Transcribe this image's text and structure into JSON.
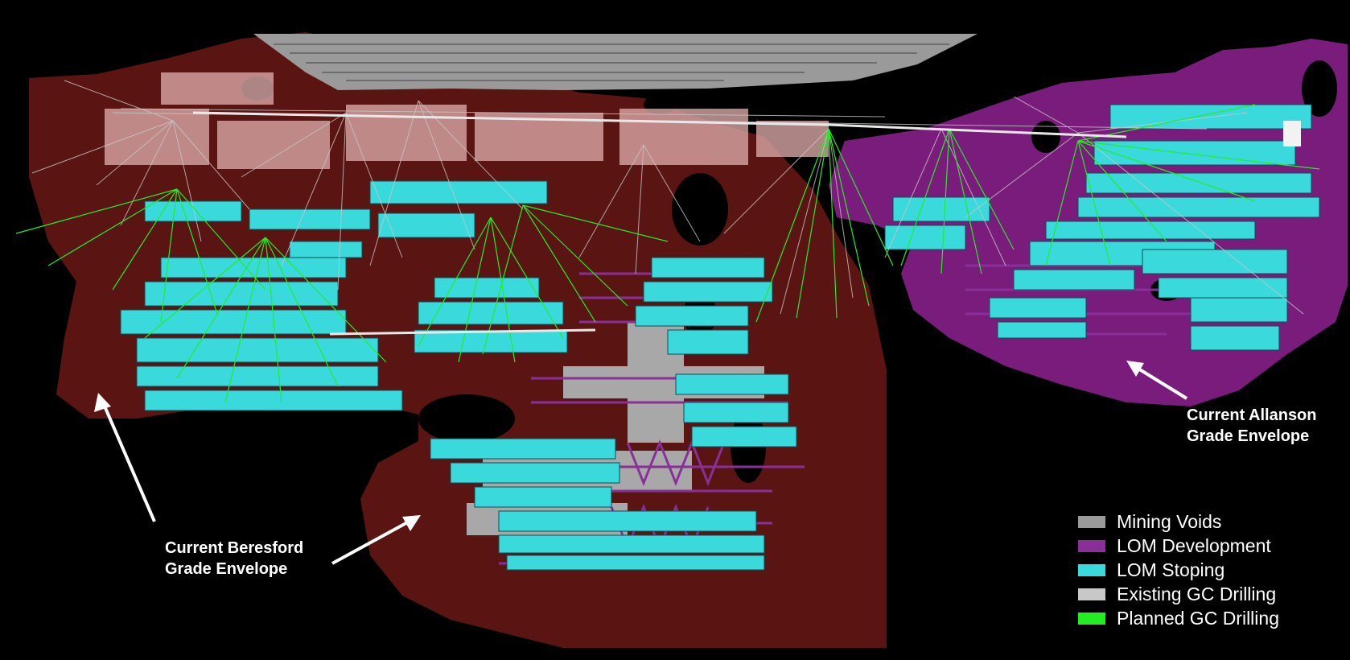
{
  "colors": {
    "background": "#000000",
    "beresford_envelope": "#5a1512",
    "allanson_envelope": "#7a1c7c",
    "mining_voids": "#9a9a9a",
    "lom_development": "#8a2f9a",
    "lom_stoping": "#3ad9dc",
    "existing_gc_drilling": "#c8c8c8",
    "planned_gc_drilling": "#22ee22"
  },
  "annotations": {
    "beresford": {
      "line1": "Current Beresford",
      "line2": "Grade Envelope"
    },
    "allanson": {
      "line1": "Current Allanson",
      "line2": "Grade Envelope"
    }
  },
  "legend": [
    {
      "label": "Mining Voids",
      "color": "#9a9a9a"
    },
    {
      "label": "LOM Development",
      "color": "#8a2f9a"
    },
    {
      "label": "LOM Stoping",
      "color": "#3ad9dc"
    },
    {
      "label": "Existing GC Drilling",
      "color": "#c8c8c8"
    },
    {
      "label": "Planned GC Drilling",
      "color": "#22ee22"
    }
  ]
}
